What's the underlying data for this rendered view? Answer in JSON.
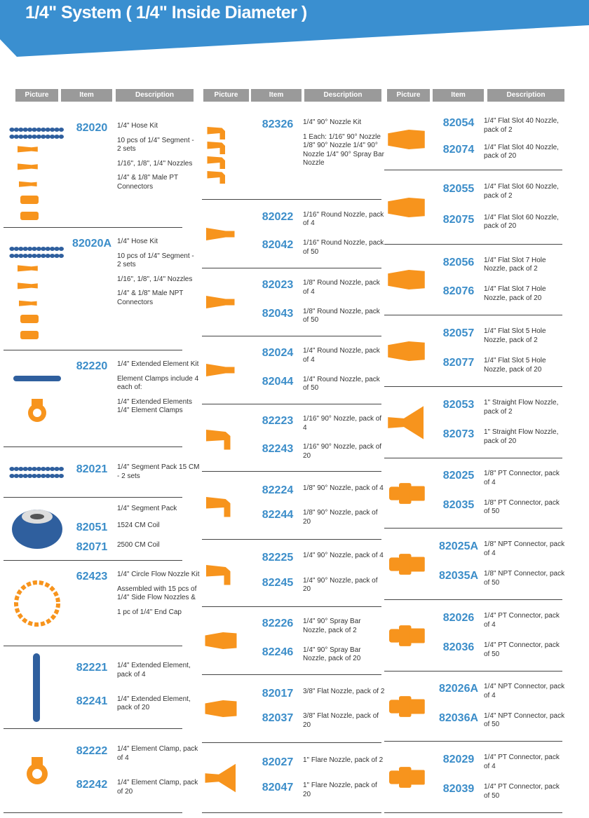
{
  "header": {
    "title": "1/4\" System ( 1/4\" Inside Diameter )"
  },
  "table_headers": [
    "Picture",
    "Item",
    "Description"
  ],
  "columns": [
    {
      "rows": [
        {
          "items": [
            {
              "code": "82020",
              "desc": [
                "1/4\" Hose Kit",
                "10 pcs of 1/4\" Segment - 2 sets",
                "1/16\", 1/8\", 1/4\" Nozzles",
                "1/4\" & 1/8\" Male PT Connectors"
              ]
            }
          ]
        },
        {
          "items": [
            {
              "code": "82020A",
              "desc": [
                "1/4\" Hose Kit",
                "10 pcs of 1/4\" Segment - 2 sets",
                "1/16\", 1/8\", 1/4\" Nozzles",
                "1/4\" & 1/8\" Male NPT Connectors"
              ]
            }
          ]
        },
        {
          "items": [
            {
              "code": "82220",
              "desc": [
                "1/4\" Extended Element Kit",
                "Element Clamps include 4 each of:",
                "1/4\" Extended  Elements 1/4\" Element Clamps"
              ]
            }
          ]
        },
        {
          "items": [
            {
              "code": "82021",
              "desc": [
                "1/4\" Segment Pack 15 CM - 2 sets"
              ]
            }
          ]
        },
        {
          "heading": "1/4\" Segment Pack",
          "items": [
            {
              "code": "82051",
              "desc": [
                "1524 CM Coil"
              ]
            },
            {
              "code": "82071",
              "desc": [
                "2500 CM Coil"
              ]
            }
          ]
        },
        {
          "items": [
            {
              "code": "62423",
              "desc": [
                "1/4\" Circle Flow Nozzle Kit",
                "Assembled with 15 pcs of 1/4\" Side Flow Nozzles &",
                "1 pc of 1/4\" End Cap"
              ]
            }
          ]
        },
        {
          "items": [
            {
              "code": "82221",
              "desc": [
                "1/4\" Extended Element, pack of 4"
              ]
            },
            {
              "code": "82241",
              "desc": [
                "1/4\" Extended Element, pack of 20"
              ]
            }
          ]
        },
        {
          "items": [
            {
              "code": "82222",
              "desc": [
                "1/4\" Element Clamp, pack of 4"
              ]
            },
            {
              "code": "82242",
              "desc": [
                "1/4\" Element Clamp, pack of 20"
              ]
            }
          ]
        }
      ]
    },
    {
      "rows": [
        {
          "items": [
            {
              "code": "82326",
              "desc": [
                "1/4\" 90° Nozzle Kit",
                "1 Each: 1/16\" 90° Nozzle 1/8\" 90° Nozzle 1/4\" 90° Nozzle 1/4\" 90° Spray Bar Nozzle"
              ]
            }
          ]
        },
        {
          "items": [
            {
              "code": "82022",
              "desc": [
                "1/16\" Round Nozzle, pack of 4"
              ]
            },
            {
              "code": "82042",
              "desc": [
                "1/16\" Round Nozzle, pack of 50"
              ]
            }
          ]
        },
        {
          "items": [
            {
              "code": "82023",
              "desc": [
                "1/8\" Round Nozzle, pack of 4"
              ]
            },
            {
              "code": "82043",
              "desc": [
                "1/8\" Round Nozzle, pack of 50"
              ]
            }
          ]
        },
        {
          "items": [
            {
              "code": "82024",
              "desc": [
                "1/4\" Round Nozzle, pack of 4"
              ]
            },
            {
              "code": "82044",
              "desc": [
                "1/4\" Round Nozzle, pack of 50"
              ]
            }
          ]
        },
        {
          "items": [
            {
              "code": "82223",
              "desc": [
                "1/16\" 90° Nozzle, pack of 4"
              ]
            },
            {
              "code": "82243",
              "desc": [
                "1/16\" 90° Nozzle, pack of 20"
              ]
            }
          ]
        },
        {
          "items": [
            {
              "code": "82224",
              "desc": [
                "1/8\" 90° Nozzle, pack of 4"
              ]
            },
            {
              "code": "82244",
              "desc": [
                "1/8\" 90° Nozzle, pack of 20"
              ]
            }
          ]
        },
        {
          "items": [
            {
              "code": "82225",
              "desc": [
                "1/4\" 90° Nozzle, pack of 4"
              ]
            },
            {
              "code": "82245",
              "desc": [
                "1/4\" 90° Nozzle, pack of 20"
              ]
            }
          ]
        },
        {
          "items": [
            {
              "code": "82226",
              "desc": [
                "1/4\" 90° Spray Bar Nozzle, pack of 2"
              ]
            },
            {
              "code": "82246",
              "desc": [
                "1/4\" 90° Spray Bar Nozzle, pack of 20"
              ]
            }
          ]
        },
        {
          "items": [
            {
              "code": "82017",
              "desc": [
                "3/8\" Flat Nozzle, pack of 2"
              ]
            },
            {
              "code": "82037",
              "desc": [
                "3/8\" Flat Nozzle, pack of 20"
              ]
            }
          ]
        },
        {
          "items": [
            {
              "code": "82027",
              "desc": [
                "1\" Flare Nozzle, pack of 2"
              ]
            },
            {
              "code": "82047",
              "desc": [
                "1\" Flare Nozzle, pack of 20"
              ]
            }
          ]
        }
      ]
    },
    {
      "rows": [
        {
          "items": [
            {
              "code": "82054",
              "desc": [
                "1/4\" Flat Slot 40 Nozzle, pack of 2"
              ]
            },
            {
              "code": "82074",
              "desc": [
                "1/4\" Flat Slot 40 Nozzle, pack of 20"
              ]
            }
          ]
        },
        {
          "items": [
            {
              "code": "82055",
              "desc": [
                "1/4\" Flat Slot 60 Nozzle, pack of 2"
              ]
            },
            {
              "code": "82075",
              "desc": [
                "1/4\" Flat Slot 60 Nozzle, pack of 20"
              ]
            }
          ]
        },
        {
          "items": [
            {
              "code": "82056",
              "desc": [
                "1/4\" Flat Slot 7 Hole Nozzle, pack of 2"
              ]
            },
            {
              "code": "82076",
              "desc": [
                "1/4\" Flat Slot 7 Hole Nozzle, pack of 20"
              ]
            }
          ]
        },
        {
          "items": [
            {
              "code": "82057",
              "desc": [
                "1/4\" Flat Slot 5 Hole Nozzle, pack of 2"
              ]
            },
            {
              "code": "82077",
              "desc": [
                "1/4\" Flat Slot 5 Hole Nozzle, pack of 20"
              ]
            }
          ]
        },
        {
          "items": [
            {
              "code": "82053",
              "desc": [
                "1\" Straight Flow Nozzle, pack of 2"
              ]
            },
            {
              "code": "82073",
              "desc": [
                "1\" Straight Flow Nozzle, pack of 20"
              ]
            }
          ]
        },
        {
          "items": [
            {
              "code": "82025",
              "desc": [
                "1/8\" PT Connector, pack of 4"
              ]
            },
            {
              "code": "82035",
              "desc": [
                "1/8\" PT Connector, pack of 50"
              ]
            }
          ]
        },
        {
          "items": [
            {
              "code": "82025A",
              "desc": [
                "1/8\" NPT Connector, pack of 4"
              ]
            },
            {
              "code": "82035A",
              "desc": [
                "1/8\" NPT Connector, pack of 50"
              ]
            }
          ]
        },
        {
          "items": [
            {
              "code": "82026",
              "desc": [
                "1/4\" PT Connector, pack of 4"
              ]
            },
            {
              "code": "82036",
              "desc": [
                "1/4\" PT Connector, pack of 50"
              ]
            }
          ]
        },
        {
          "items": [
            {
              "code": "82026A",
              "desc": [
                "1/4\" NPT Connector, pack of 4"
              ]
            },
            {
              "code": "82036A",
              "desc": [
                "1/4\" NPT Connector, pack of 50"
              ]
            }
          ]
        },
        {
          "items": [
            {
              "code": "82029",
              "desc": [
                "1/4\" PT Connector, pack of 4"
              ]
            },
            {
              "code": "82039",
              "desc": [
                "1/4\" PT Connector, pack of 50"
              ]
            }
          ]
        }
      ]
    }
  ]
}
